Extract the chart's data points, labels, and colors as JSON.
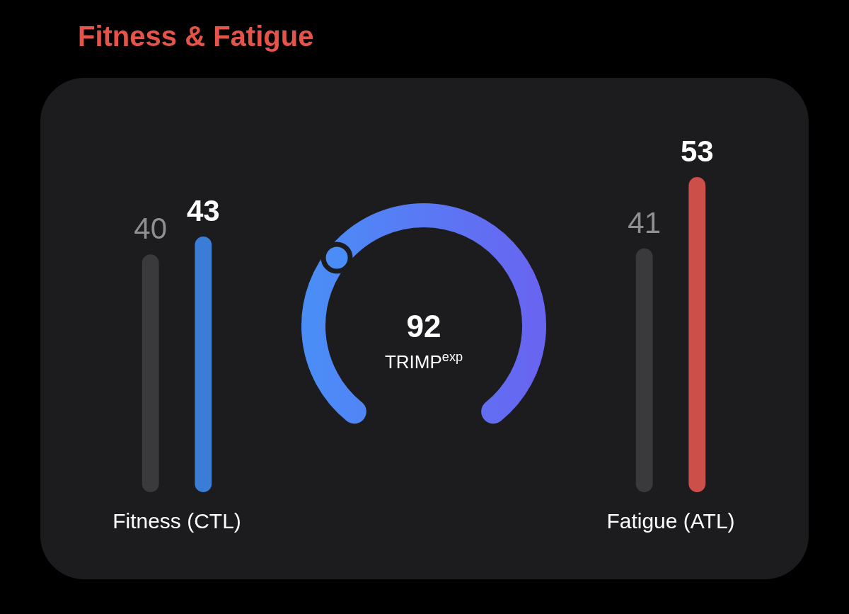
{
  "chart_data": [
    {
      "type": "bar",
      "title": "Fitness & Fatigue",
      "categories": [
        null,
        null
      ],
      "values": [
        40,
        43
      ],
      "colors": [
        "#3a3a3c",
        "#3a7cd6"
      ],
      "data_labels": true,
      "xlabel": "Fitness (CTL)"
    },
    {
      "type": "other",
      "annotations": [
        "92",
        "TRIMP$^{exp}$"
      ]
    },
    {
      "type": "bar",
      "categories": [
        null,
        null
      ],
      "values": [
        41,
        53
      ],
      "colors": [
        "#3a3a3c",
        "#cd4f4a"
      ],
      "data_labels": true,
      "xlabel": "Fatigue (ATL)"
    }
  ]
}
